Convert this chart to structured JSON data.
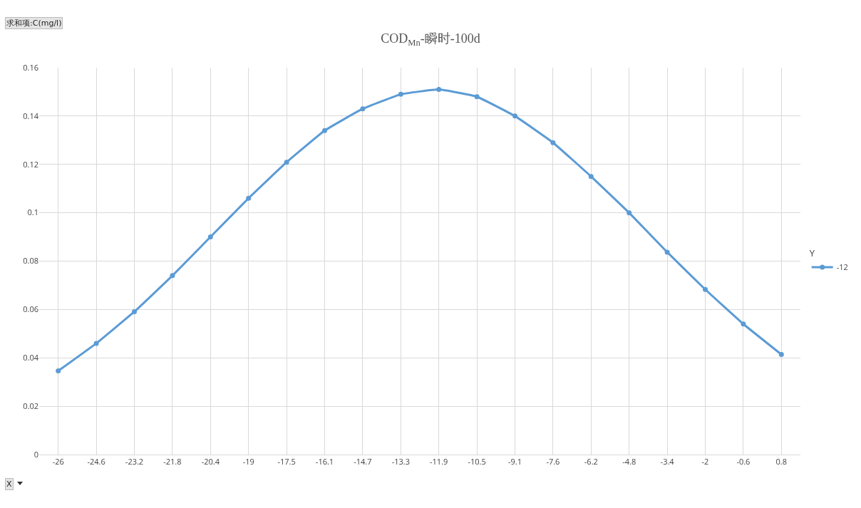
{
  "chart_data": {
    "type": "line",
    "title": "COD$_{Mn}$-瞬时-100d",
    "legend_title": "Y",
    "annotations": [
      "求和项:C(mg/l)",
      "X"
    ],
    "categories": [
      "-26",
      "-24.6",
      "-23.2",
      "-21.8",
      "-20.4",
      "-19",
      "-17.5",
      "-16.1",
      "-14.7",
      "-13.3",
      "-11.9",
      "-10.5",
      "-9.1",
      "-7.6",
      "-6.2",
      "-4.8",
      "-3.4",
      "-2",
      "-0.6",
      "0.8"
    ],
    "series": [
      {
        "name": "-12",
        "color": "#5b9bd5",
        "values": [
          0.0346,
          0.046,
          0.0591,
          0.074,
          0.09,
          0.106,
          0.1209,
          0.134,
          0.143,
          0.149,
          0.151,
          0.148,
          0.14,
          0.129,
          0.115,
          0.1,
          0.0837,
          0.0683,
          0.054,
          0.0414
        ]
      }
    ],
    "ylim": [
      0,
      0.16
    ],
    "yticks": [
      0,
      0.02,
      0.04,
      0.06,
      0.08,
      0.1,
      0.12,
      0.14,
      0.16
    ],
    "grid": true,
    "legend": "right",
    "marker": "circle",
    "line_style": "solid"
  }
}
